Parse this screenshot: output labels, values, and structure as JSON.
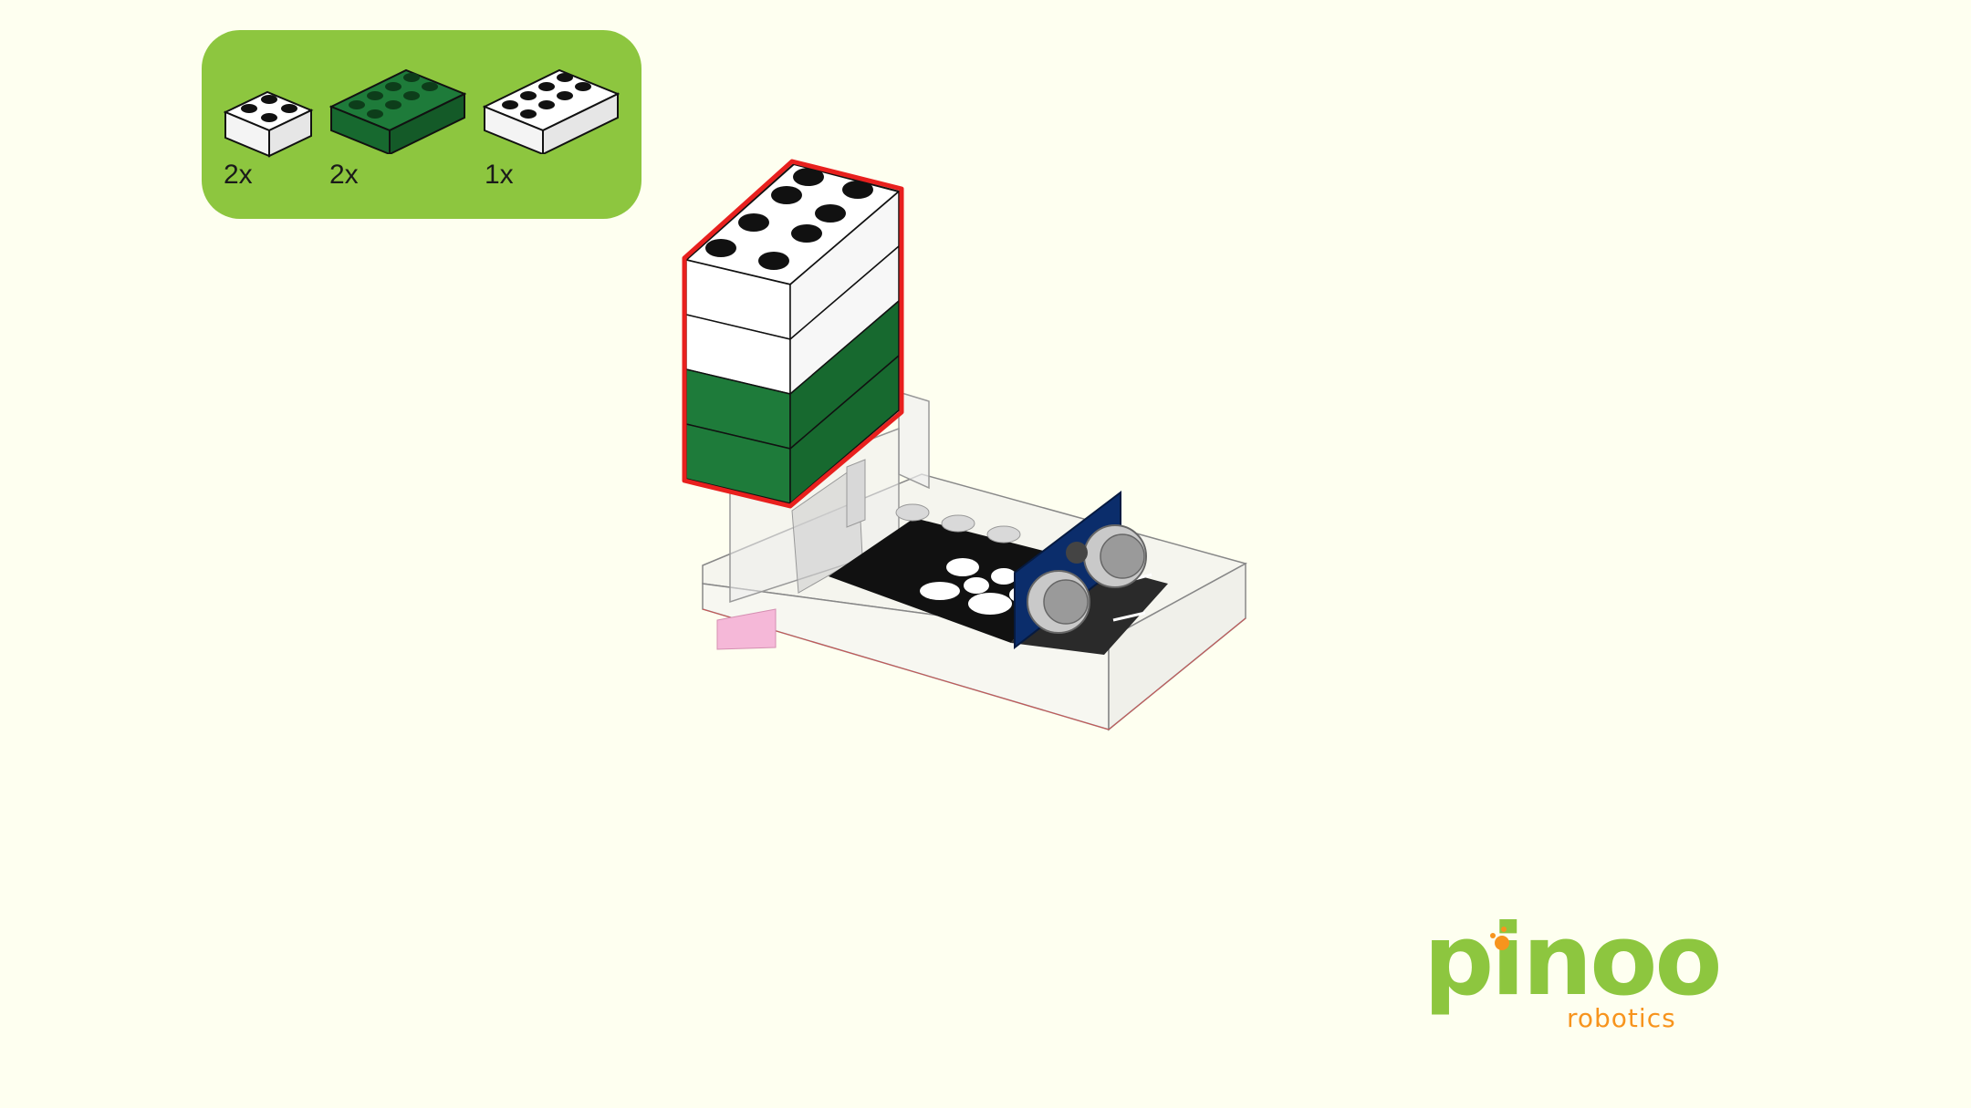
{
  "parts_list": {
    "items": [
      {
        "name": "2x2 white brick",
        "color": "#ffffff",
        "count": "2x"
      },
      {
        "name": "2x4 dark green brick",
        "color": "#1e7b3a",
        "count": "2x"
      },
      {
        "name": "2x4 white brick",
        "color": "#ffffff",
        "count": "1x"
      }
    ],
    "panel_color": "#8dc63f"
  },
  "model": {
    "highlight_color": "#e8201e",
    "stack_colors": [
      "#ffffff",
      "#ffffff",
      "#1e7b3a",
      "#1e7b3a"
    ],
    "sensor_color": "#0b2d6b"
  },
  "logo": {
    "word": "pinoo",
    "sub": "robotics",
    "word_color": "#8dc63f",
    "sub_color": "#f7941d"
  }
}
